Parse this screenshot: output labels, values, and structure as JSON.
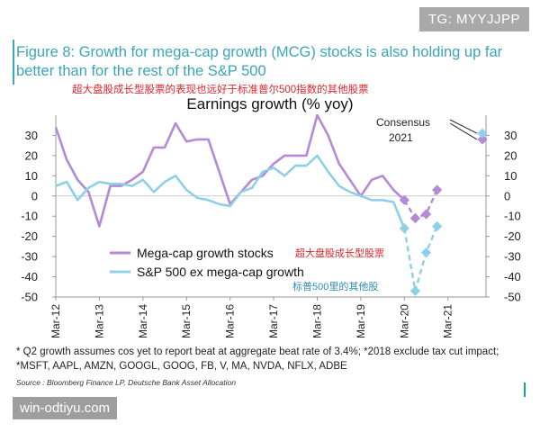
{
  "watermark_top": "TG: MYYJJPP",
  "watermark_bottom": "win-odtiyu.com",
  "figure_title": "Figure 8: Growth for mega-cap growth (MCG) stocks is also holding up far better than for the rest of the S&P 500",
  "cn_title": "超大盘股成长型股票的表现也远好于标准普尔500指数的其他股票",
  "footnote": "* Q2 growth assumes cos yet to report beat at aggregate beat rate of 3.4%; *2018 exclude tax cut impact; *MSFT, AAPL, AMZN, GOOGL, GOOG, FB, V, MA, NVDA, NFLX, ADBE",
  "source": "Source : Bloomberg Finance LP, Deutsche Bank Asset Allocation",
  "colors": {
    "title": "#3aa6b9",
    "mega": "#b48ad6",
    "sp": "#8fd0e8",
    "cn": "#d9262b",
    "accent": "#1aa08e"
  },
  "chart_data": {
    "type": "line",
    "title": "Earnings growth (% yoy)",
    "ylim": [
      -50,
      40
    ],
    "y_ticks": [
      30,
      20,
      10,
      0,
      -10,
      -20,
      -30,
      -40,
      -50
    ],
    "x_ticks": [
      {
        "label": "Mar-12",
        "x": 0
      },
      {
        "label": "Mar-13",
        "x": 4
      },
      {
        "label": "Mar-14",
        "x": 8
      },
      {
        "label": "Mar-15",
        "x": 12
      },
      {
        "label": "Mar-16",
        "x": 16
      },
      {
        "label": "Mar-17",
        "x": 20
      },
      {
        "label": "Mar-18",
        "x": 24
      },
      {
        "label": "Mar-19",
        "x": 28
      },
      {
        "label": "Mar-20",
        "x": 32
      },
      {
        "label": "Mar-21",
        "x": 36
      }
    ],
    "xlim": [
      0,
      38.5
    ],
    "series": [
      {
        "name": "Mega-cap growth stocks",
        "name_cn": "超大盘股成长型股票",
        "color": "#b48ad6",
        "x": [
          0,
          1,
          2,
          3,
          4,
          5,
          6,
          7,
          8,
          9,
          10,
          11,
          12,
          13,
          14,
          15,
          16,
          17,
          18,
          19,
          20,
          21,
          22,
          23,
          24,
          25,
          26,
          27,
          28,
          29,
          30,
          31,
          32
        ],
        "values": [
          34,
          18,
          8,
          2,
          -15,
          5,
          5,
          8,
          12,
          24,
          24,
          36,
          27,
          28,
          28,
          12,
          -4,
          2,
          8,
          10,
          16,
          20,
          20,
          20,
          40,
          30,
          16,
          8,
          0,
          8,
          10,
          3,
          -2
        ],
        "dashed": {
          "x": [
            32,
            33,
            34,
            35
          ],
          "values": [
            -2,
            -11,
            -9,
            3
          ]
        }
      },
      {
        "name": "S&P 500 ex mega-cap growth",
        "name_cn": "标普500里的其他股",
        "color": "#8fd0e8",
        "x": [
          0,
          1,
          2,
          3,
          4,
          5,
          6,
          7,
          8,
          9,
          10,
          11,
          12,
          13,
          14,
          15,
          16,
          17,
          18,
          19,
          20,
          21,
          22,
          23,
          24,
          25,
          26,
          27,
          28,
          29,
          30,
          31,
          32
        ],
        "values": [
          5,
          7,
          -2,
          4,
          7,
          6,
          6,
          5,
          8,
          2,
          7,
          10,
          3,
          -1,
          -2,
          -4,
          -5,
          2,
          4,
          12,
          14,
          10,
          15,
          15,
          20,
          12,
          5,
          2,
          0,
          -2,
          -2,
          -3,
          -16
        ],
        "dashed": {
          "x": [
            32,
            33,
            34,
            35
          ],
          "values": [
            -16,
            -47,
            -28,
            -15
          ]
        }
      }
    ],
    "consensus_2021": {
      "label": "Consensus 2021",
      "x": 38,
      "mega": 28,
      "sp": 31
    }
  }
}
